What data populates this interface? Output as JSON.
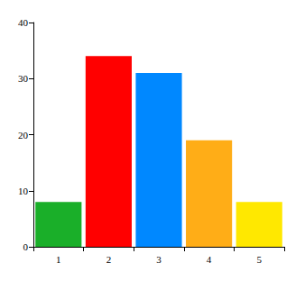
{
  "chart_data": {
    "type": "bar",
    "categories": [
      "1",
      "2",
      "3",
      "4",
      "5"
    ],
    "values": [
      8,
      34,
      31,
      19,
      8
    ],
    "colors": [
      "#1aaf29",
      "#ff0000",
      "#0088ff",
      "#ffad17",
      "#ffe800"
    ],
    "ylim": [
      0,
      40
    ],
    "yticks": [
      0,
      10,
      20,
      30,
      40
    ],
    "grid": false
  }
}
